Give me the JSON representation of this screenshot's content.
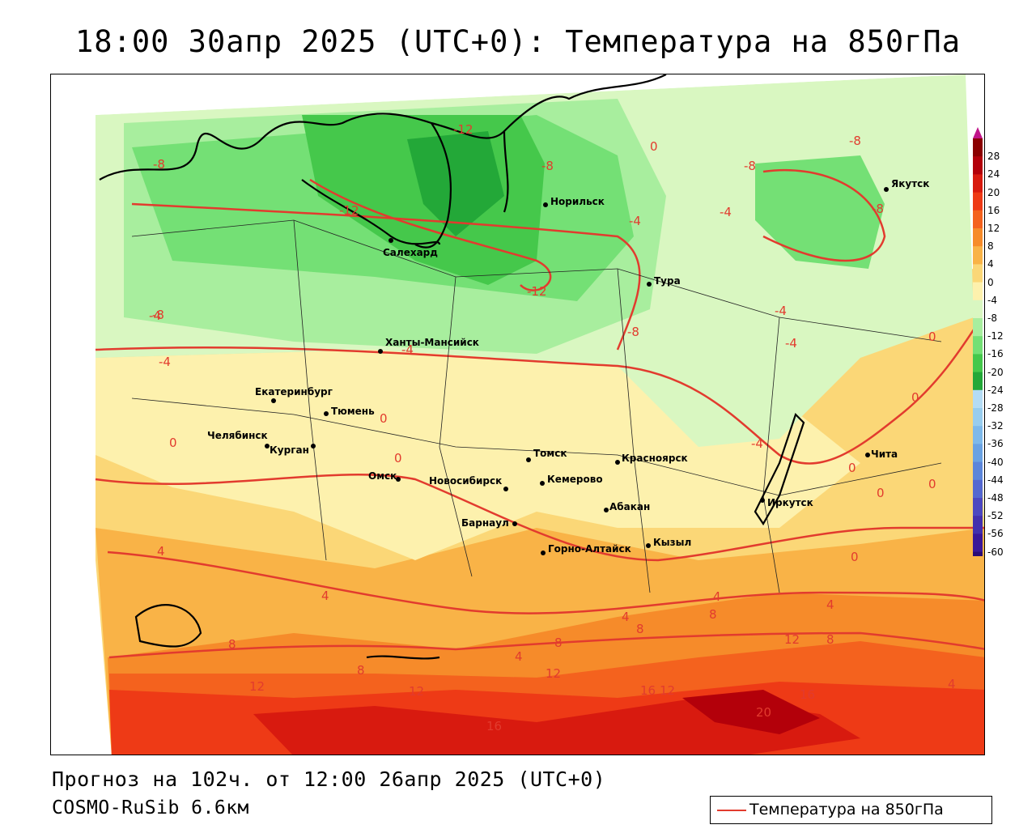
{
  "title": "18:00 30апр 2025 (UTC+0): Температура на 850гПа",
  "footer": {
    "forecast": "Прогноз на 102ч. от 12:00 26апр 2025 (UTC+0)",
    "model": "COSMO-RuSib 6.6км"
  },
  "legend": {
    "label": "Температура на 850гПа",
    "line_color": "#e23b2e"
  },
  "color_scale": {
    "ticks": [
      "28",
      "24",
      "20",
      "16",
      "12",
      "8",
      "4",
      "0",
      "-4",
      "-8",
      "-12",
      "-16",
      "-20",
      "-24",
      "-28",
      "-32",
      "-36",
      "-40",
      "-44",
      "-48",
      "-52",
      "-56",
      "-60"
    ],
    "colors": [
      "#8b0000",
      "#b3000a",
      "#d81a0f",
      "#ee3a16",
      "#f4621e",
      "#f68b2a",
      "#f9b347",
      "#fbd777",
      "#fdf1ad",
      "#d9f7c1",
      "#a8ee9e",
      "#74e075",
      "#45c84b",
      "#23a838",
      "#b4dcf5",
      "#98cdee",
      "#7eb9ea",
      "#6aa2e2",
      "#5c86da",
      "#5468d0",
      "#4c48c0",
      "#4330ad",
      "#3a1798",
      "#2a0b75"
    ]
  },
  "cities": [
    {
      "name": "Якутск"
    },
    {
      "name": "Норильск"
    },
    {
      "name": "Салехард"
    },
    {
      "name": "Тура"
    },
    {
      "name": "Ханты-Мансийск"
    },
    {
      "name": "Екатеринбург"
    },
    {
      "name": "Тюмень"
    },
    {
      "name": "Челябинск"
    },
    {
      "name": "Курган"
    },
    {
      "name": "Омск"
    },
    {
      "name": "Новосибирск"
    },
    {
      "name": "Томск"
    },
    {
      "name": "Кемерово"
    },
    {
      "name": "Красноярск"
    },
    {
      "name": "Абакан"
    },
    {
      "name": "Барнаул"
    },
    {
      "name": "Горно-Алтайск"
    },
    {
      "name": "Кызыл"
    },
    {
      "name": "Иркутск"
    },
    {
      "name": "Чита"
    }
  ],
  "isoline_labels": [
    "-8",
    "-12",
    "-12",
    "-8",
    "-8",
    "-8",
    "-8",
    "-4",
    "-4",
    "-4",
    "-12",
    "-8",
    "-8",
    "-4",
    "-4",
    "-4",
    "-4",
    "-4",
    "0",
    "0",
    "0",
    "0",
    "0",
    "0",
    "0",
    "0",
    "0",
    "0",
    "4",
    "4",
    "4",
    "4",
    "4",
    "4",
    "4",
    "8",
    "8",
    "8",
    "8",
    "8",
    "8",
    "12",
    "12",
    "12",
    "12",
    "12",
    "16",
    "16",
    "16",
    "20"
  ]
}
